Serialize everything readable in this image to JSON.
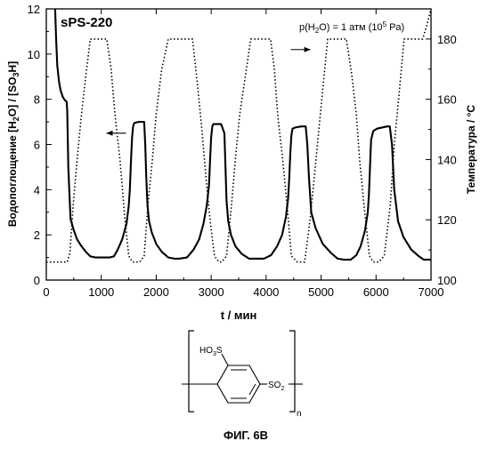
{
  "chart_data": {
    "type": "line",
    "title": "sPS-220",
    "annotation": "p(H2O) = 1 атм (10^5 Pa)",
    "annotation_parts": {
      "p": "p(H",
      "sub": "2",
      "mid": "O) = 1 атм (10",
      "sup": "5",
      "end": " Pa)"
    },
    "xlabel": "t / мин",
    "ylabel_left": {
      "a": "Водопоглощение  [H",
      "s1": "2",
      "b": "O] / [SO",
      "s2": "3",
      "c": "H]"
    },
    "ylabel_right": "Температура / °C",
    "xlim": [
      0,
      7000
    ],
    "ylim_left": [
      0,
      12
    ],
    "ylim_right": [
      100,
      190
    ],
    "x_ticks": [
      "0",
      "1000",
      "2000",
      "3000",
      "4000",
      "5000",
      "6000",
      "7000"
    ],
    "y_left_ticks": [
      "0",
      "2",
      "4",
      "6",
      "8",
      "10",
      "12"
    ],
    "y_right_ticks": [
      "100",
      "120",
      "140",
      "160",
      "180"
    ],
    "grid": false,
    "series": [
      {
        "axis": "left",
        "style": "solid",
        "x": [
          160,
          180,
          200,
          230,
          260,
          300,
          340,
          370,
          380,
          400,
          440,
          500,
          560,
          640,
          720,
          800,
          900,
          1050,
          1150,
          1230,
          1300,
          1380,
          1460,
          1500,
          1520,
          1540,
          1560,
          1580,
          1600,
          1680,
          1780,
          1800,
          1820,
          1840,
          1870,
          1920,
          2000,
          2100,
          2220,
          2330,
          2420,
          2560,
          2680,
          2780,
          2860,
          2920,
          2960,
          2980,
          3000,
          3020,
          3040,
          3080,
          3180,
          3240,
          3260,
          3280,
          3310,
          3360,
          3440,
          3560,
          3690,
          3830,
          3960,
          4090,
          4200,
          4290,
          4360,
          4400,
          4420,
          4440,
          4460,
          4480,
          4530,
          4640,
          4720,
          4750,
          4780,
          4820,
          4900,
          5030,
          5180,
          5300,
          5420,
          5540,
          5640,
          5720,
          5800,
          5850,
          5870,
          5890,
          5910,
          5950,
          6020,
          6200,
          6250,
          6290,
          6330,
          6400,
          6500,
          6640,
          6780,
          6870,
          7000
        ],
        "y": [
          12,
          10.6,
          9.5,
          8.8,
          8.4,
          8.1,
          7.95,
          7.9,
          7.5,
          5.0,
          2.7,
          2.2,
          1.8,
          1.5,
          1.25,
          1.05,
          1.0,
          1.0,
          1.0,
          1.05,
          1.35,
          1.8,
          2.5,
          3.3,
          4.0,
          5.2,
          6.3,
          6.8,
          6.95,
          7.0,
          7.0,
          6.0,
          4.5,
          3.3,
          2.6,
          2.1,
          1.6,
          1.25,
          1.0,
          0.95,
          0.95,
          1.0,
          1.35,
          1.8,
          2.5,
          3.3,
          4.2,
          5.3,
          6.3,
          6.8,
          6.9,
          6.9,
          6.9,
          6.5,
          5.0,
          3.5,
          2.6,
          2.0,
          1.5,
          1.15,
          0.95,
          0.95,
          0.95,
          1.1,
          1.5,
          2.0,
          2.8,
          3.6,
          4.5,
          5.6,
          6.4,
          6.7,
          6.75,
          6.8,
          6.8,
          6.0,
          4.5,
          3.0,
          2.3,
          1.6,
          1.2,
          0.95,
          0.9,
          0.9,
          1.1,
          1.5,
          2.2,
          3.0,
          3.8,
          5.0,
          6.2,
          6.6,
          6.7,
          6.8,
          6.8,
          6.0,
          4.0,
          2.6,
          1.9,
          1.35,
          1.05,
          0.9,
          0.9
        ]
      },
      {
        "axis": "right",
        "style": "dotted",
        "x": [
          0,
          380,
          430,
          490,
          560,
          640,
          720,
          800,
          860,
          1050,
          1100,
          1180,
          1250,
          1340,
          1430,
          1500,
          1570,
          1650,
          1700,
          1780,
          1850,
          1930,
          2000,
          2100,
          2220,
          2340,
          2460,
          2580,
          2660,
          2750,
          2830,
          2900,
          2980,
          3060,
          3140,
          3190,
          3280,
          3370,
          3440,
          3520,
          3600,
          3720,
          3850,
          3990,
          4080,
          4150,
          4210,
          4300,
          4380,
          4460,
          4570,
          4630,
          4700,
          4800,
          4880,
          4960,
          5040,
          5120,
          5220,
          5350,
          5460,
          5560,
          5640,
          5700,
          5780,
          5880,
          5950,
          6050,
          6150,
          6260,
          6330,
          6410,
          6510,
          6620,
          6760,
          6850,
          6930,
          7000
        ],
        "y": [
          106,
          106,
          109,
          125,
          140,
          155,
          168,
          180,
          180,
          180,
          180,
          170,
          155,
          140,
          120,
          108,
          106,
          106,
          106,
          108,
          125,
          140,
          155,
          170,
          180,
          180,
          180,
          180,
          180,
          165,
          150,
          135,
          120,
          108,
          106,
          106,
          108,
          125,
          140,
          155,
          165,
          180,
          180,
          180,
          180,
          170,
          155,
          140,
          125,
          108,
          106,
          106,
          106,
          120,
          135,
          150,
          165,
          180,
          180,
          180,
          180,
          168,
          155,
          140,
          125,
          108,
          106,
          106,
          108,
          125,
          145,
          160,
          180,
          180,
          180,
          180,
          185,
          190
        ]
      }
    ],
    "arrows": [
      {
        "label": "series-left-indicator",
        "direction": "left",
        "x": 1450,
        "y": 6.5
      },
      {
        "label": "series-right-indicator",
        "direction": "right",
        "x": 4450,
        "y": 10.2
      }
    ]
  },
  "structure": {
    "group1": "HO",
    "group1_sub": "3",
    "group1_atom": "S",
    "group2": "SO",
    "group2_sub": "2",
    "repeat_subscript": "n"
  },
  "caption": "ФИГ. 6В"
}
